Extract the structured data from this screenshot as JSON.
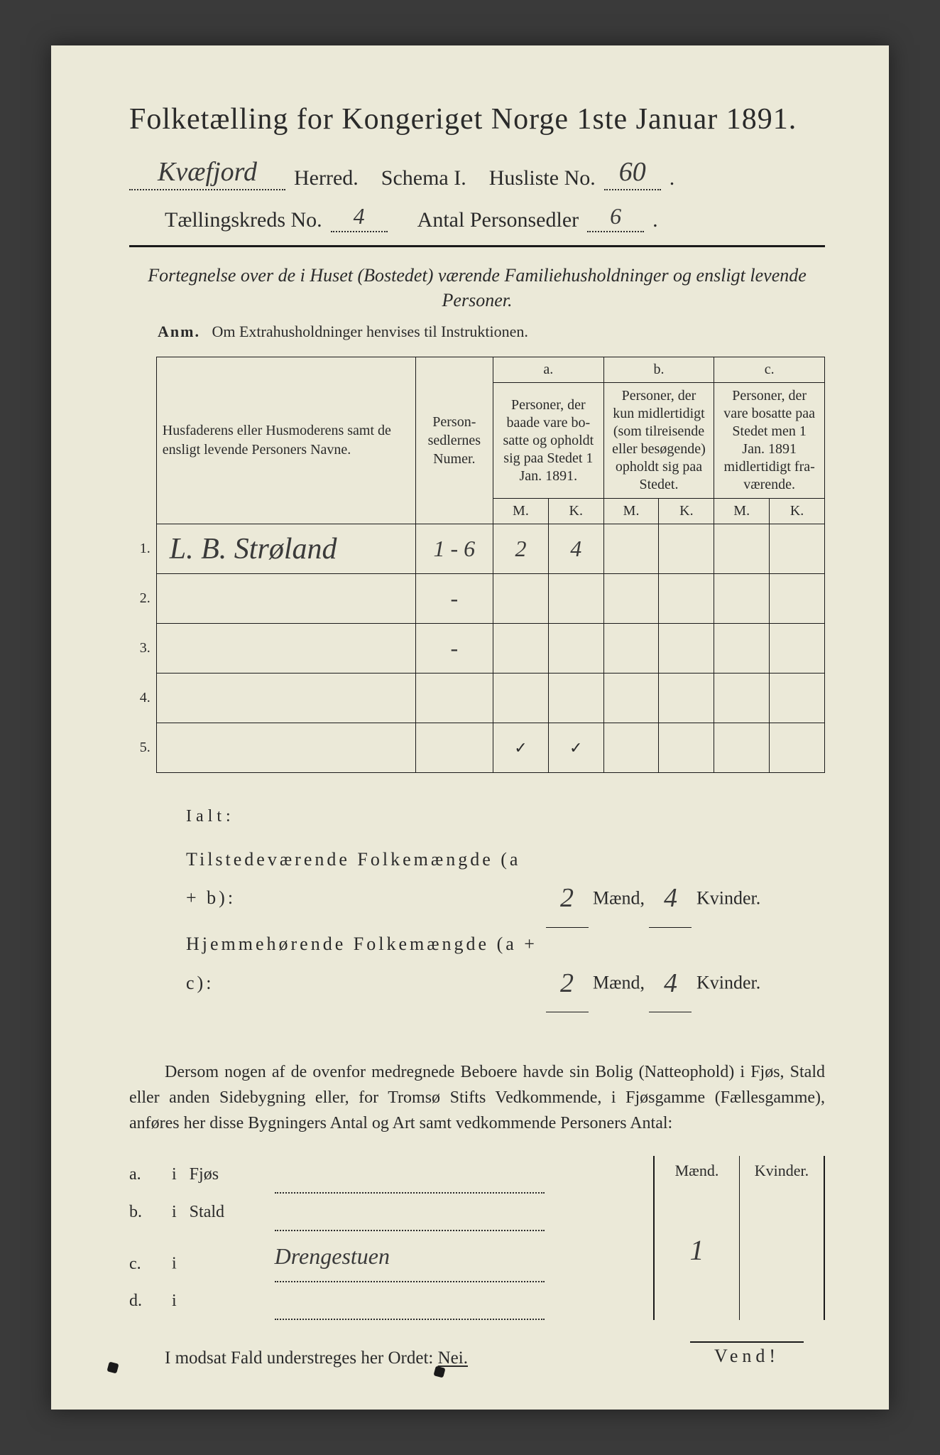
{
  "header": {
    "main_title": "Folketælling for Kongeriget Norge 1ste Januar 1891.",
    "herred_hand": "Kvæfjord",
    "herred_label": "Herred.",
    "schema_label": "Schema I.",
    "husliste_label": "Husliste No.",
    "husliste_no": "60",
    "kreds_label": "Tællingskreds No.",
    "kreds_no": "4",
    "antal_label": "Antal Personsedler",
    "antal_val": "6"
  },
  "subtitle": "Fortegnelse over de i Huset (Bostedet) værende Familiehusholdninger og ensligt levende Personer.",
  "anm_label": "Anm.",
  "anm_text": "Om Extrahusholdninger henvises til Instruktionen.",
  "table": {
    "names_head": "Husfaderens eller Husmode­rens samt de ensligt levende Personers Navne.",
    "numer_head": "Person­sedler­nes Numer.",
    "a_label": "a.",
    "a_desc": "Personer, der baade vare bo­satte og opholdt sig paa Stedet 1 Jan. 1891.",
    "b_label": "b.",
    "b_desc": "Personer, der kun midler­tidigt (som tilreisende eller besøgende) opholdt sig paa Stedet.",
    "c_label": "c.",
    "c_desc": "Personer, der vare bosatte paa Stedet men 1 Jan. 1891 midler­tidigt fra­værende.",
    "m": "M.",
    "k": "K.",
    "rows": [
      {
        "n": "1.",
        "name": "L. B. Strøland",
        "numer": "1 - 6",
        "aM": "2",
        "aK": "4",
        "bM": "",
        "bK": "",
        "cM": "",
        "cK": ""
      },
      {
        "n": "2.",
        "name": "",
        "numer": "-",
        "aM": "",
        "aK": "",
        "bM": "",
        "bK": "",
        "cM": "",
        "cK": ""
      },
      {
        "n": "3.",
        "name": "",
        "numer": "-",
        "aM": "",
        "aK": "",
        "bM": "",
        "bK": "",
        "cM": "",
        "cK": ""
      },
      {
        "n": "4.",
        "name": "",
        "numer": "",
        "aM": "",
        "aK": "",
        "bM": "",
        "bK": "",
        "cM": "",
        "cK": ""
      },
      {
        "n": "5.",
        "name": "",
        "numer": "",
        "aM": "✓",
        "aK": "✓",
        "bM": "",
        "bK": "",
        "cM": "",
        "cK": ""
      }
    ]
  },
  "totals": {
    "ialt": "Ialt:",
    "row1_label": "Tilstedeværende Folkemængde (a + b):",
    "row2_label": "Hjemmehørende Folkemængde (a + c):",
    "maend": "Mænd,",
    "kvinder": "Kvinder.",
    "r1m": "2",
    "r1k": "4",
    "r2m": "2",
    "r2k": "4"
  },
  "para": "Dersom nogen af de ovenfor medregnede Beboere havde sin Bolig (Natte­ophold) i Fjøs, Stald eller anden Sidebygning eller, for Tromsø Stifts Ved­kommende, i Fjøsgamme (Fællesgamme), anføres her disse Bygningers Antal og Art samt vedkommende Personers Antal:",
  "residence": {
    "m_head": "Mænd.",
    "k_head": "Kvinder.",
    "rows": [
      {
        "k": "a.",
        "i": "i",
        "t": "Fjøs",
        "hand": ""
      },
      {
        "k": "b.",
        "i": "i",
        "t": "Stald",
        "hand": ""
      },
      {
        "k": "c.",
        "i": "i",
        "t": "",
        "hand": "Drengestuen"
      },
      {
        "k": "d.",
        "i": "i",
        "t": "",
        "hand": ""
      }
    ],
    "m_val": "1",
    "k_val": ""
  },
  "nei_line_pre": "I modsat Fald understreges her Ordet: ",
  "nei_word": "Nei.",
  "vend": "Vend!",
  "colors": {
    "paper": "#ebe9d8",
    "ink": "#2a2a2a",
    "rule": "#1a1a1a",
    "hand": "#3a3a3a",
    "bg": "#3a3a3a"
  }
}
